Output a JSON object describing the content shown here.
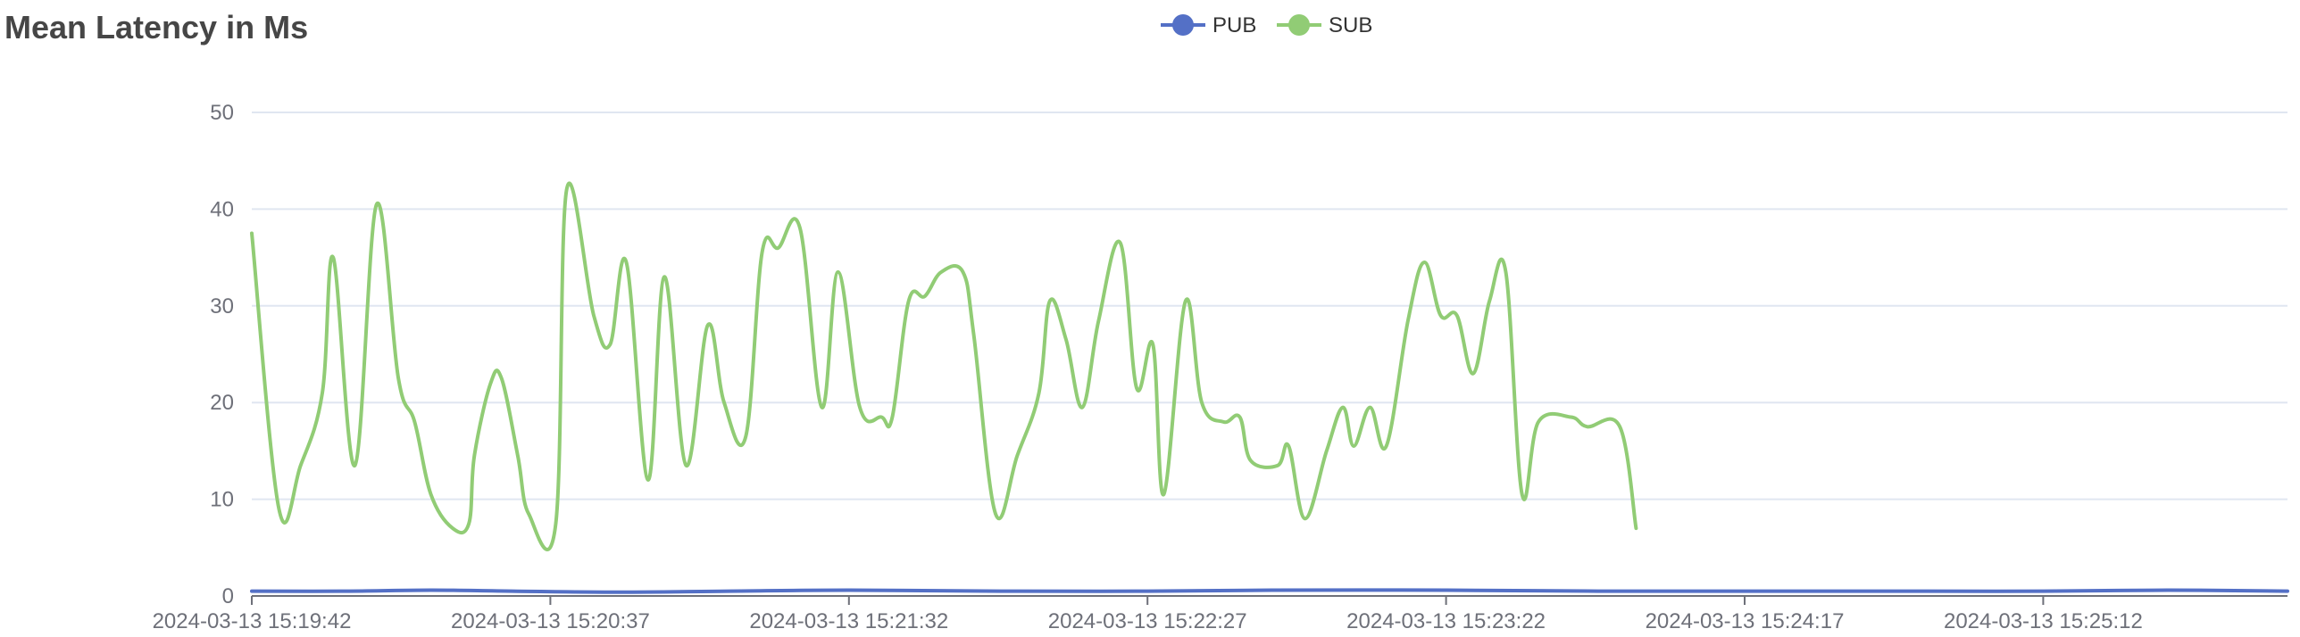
{
  "chart_data": {
    "type": "line",
    "title": "Mean Latency in Ms",
    "xlabel": "",
    "ylabel": "",
    "ylim": [
      0,
      50
    ],
    "yticks": [
      0,
      10,
      20,
      30,
      40,
      50
    ],
    "grid": true,
    "legend_position": "top-center",
    "x_tick_labels": [
      "2024-03-13 15:19:42",
      "2024-03-13 15:20:37",
      "2024-03-13 15:21:32",
      "2024-03-13 15:22:27",
      "2024-03-13 15:23:22",
      "2024-03-13 15:24:17",
      "2024-03-13 15:25:12"
    ],
    "x_tick_step_seconds": 55,
    "x_end": "2024-03-13 15:25:57",
    "series": [
      {
        "name": "PUB",
        "color": "#5470c6",
        "points": [
          [
            "2024-03-13 15:19:42",
            0.5
          ],
          [
            "2024-03-13 15:20:00",
            0.5
          ],
          [
            "2024-03-13 15:20:15",
            0.6
          ],
          [
            "2024-03-13 15:20:30",
            0.5
          ],
          [
            "2024-03-13 15:20:50",
            0.4
          ],
          [
            "2024-03-13 15:21:10",
            0.5
          ],
          [
            "2024-03-13 15:21:32",
            0.6
          ],
          [
            "2024-03-13 15:22:00",
            0.5
          ],
          [
            "2024-03-13 15:22:27",
            0.5
          ],
          [
            "2024-03-13 15:22:50",
            0.6
          ],
          [
            "2024-03-13 15:23:22",
            0.6
          ],
          [
            "2024-03-13 15:23:50",
            0.5
          ],
          [
            "2024-03-13 15:24:17",
            0.5
          ],
          [
            "2024-03-13 15:24:45",
            0.5
          ],
          [
            "2024-03-13 15:25:12",
            0.5
          ],
          [
            "2024-03-13 15:25:35",
            0.6
          ],
          [
            "2024-03-13 15:25:57",
            0.5
          ]
        ]
      },
      {
        "name": "SUB",
        "color": "#91cc75",
        "points": [
          [
            "2024-03-13 15:19:42",
            37.5
          ],
          [
            "2024-03-13 15:19:47",
            9.0
          ],
          [
            "2024-03-13 15:19:51",
            13.5
          ],
          [
            "2024-03-13 15:19:55",
            21.0
          ],
          [
            "2024-03-13 15:19:57",
            35.0
          ],
          [
            "2024-03-13 15:20:01",
            13.5
          ],
          [
            "2024-03-13 15:20:05",
            40.5
          ],
          [
            "2024-03-13 15:20:09",
            22.5
          ],
          [
            "2024-03-13 15:20:12",
            18.0
          ],
          [
            "2024-03-13 15:20:15",
            10.5
          ],
          [
            "2024-03-13 15:20:19",
            7.0
          ],
          [
            "2024-03-13 15:20:22",
            7.5
          ],
          [
            "2024-03-13 15:20:23",
            14.5
          ],
          [
            "2024-03-13 15:20:26",
            22.0
          ],
          [
            "2024-03-13 15:20:28",
            22.5
          ],
          [
            "2024-03-13 15:20:31",
            14.5
          ],
          [
            "2024-03-13 15:20:33",
            8.5
          ],
          [
            "2024-03-13 15:20:38",
            7.5
          ],
          [
            "2024-03-13 15:20:40",
            42.0
          ],
          [
            "2024-03-13 15:20:45",
            29.0
          ],
          [
            "2024-03-13 15:20:48",
            26.0
          ],
          [
            "2024-03-13 15:20:51",
            34.5
          ],
          [
            "2024-03-13 15:20:55",
            12.0
          ],
          [
            "2024-03-13 15:20:58",
            33.0
          ],
          [
            "2024-03-13 15:21:02",
            13.5
          ],
          [
            "2024-03-13 15:21:06",
            28.0
          ],
          [
            "2024-03-13 15:21:09",
            20.0
          ],
          [
            "2024-03-13 15:21:13",
            16.5
          ],
          [
            "2024-03-13 15:21:16",
            35.5
          ],
          [
            "2024-03-13 15:21:19",
            36.0
          ],
          [
            "2024-03-13 15:21:23",
            38.0
          ],
          [
            "2024-03-13 15:21:27",
            19.5
          ],
          [
            "2024-03-13 15:21:30",
            33.5
          ],
          [
            "2024-03-13 15:21:34",
            19.5
          ],
          [
            "2024-03-13 15:21:38",
            18.5
          ],
          [
            "2024-03-13 15:21:40",
            18.5
          ],
          [
            "2024-03-13 15:21:43",
            30.5
          ],
          [
            "2024-03-13 15:21:46",
            31.0
          ],
          [
            "2024-03-13 15:21:49",
            33.5
          ],
          [
            "2024-03-13 15:21:53",
            33.5
          ],
          [
            "2024-03-13 15:21:55",
            27.0
          ],
          [
            "2024-03-13 15:21:59",
            8.5
          ],
          [
            "2024-03-13 15:22:03",
            14.5
          ],
          [
            "2024-03-13 15:22:07",
            21.0
          ],
          [
            "2024-03-13 15:22:09",
            30.5
          ],
          [
            "2024-03-13 15:22:12",
            26.5
          ],
          [
            "2024-03-13 15:22:15",
            19.5
          ],
          [
            "2024-03-13 15:22:18",
            28.5
          ],
          [
            "2024-03-13 15:22:22",
            36.5
          ],
          [
            "2024-03-13 15:22:25",
            21.5
          ],
          [
            "2024-03-13 15:22:28",
            26.0
          ],
          [
            "2024-03-13 15:22:30",
            10.5
          ],
          [
            "2024-03-13 15:22:34",
            30.5
          ],
          [
            "2024-03-13 15:22:37",
            20.0
          ],
          [
            "2024-03-13 15:22:41",
            18.0
          ],
          [
            "2024-03-13 15:22:44",
            18.5
          ],
          [
            "2024-03-13 15:22:46",
            14.0
          ],
          [
            "2024-03-13 15:22:51",
            13.5
          ],
          [
            "2024-03-13 15:22:53",
            15.5
          ],
          [
            "2024-03-13 15:22:56",
            8.0
          ],
          [
            "2024-03-13 15:23:00",
            15.0
          ],
          [
            "2024-03-13 15:23:03",
            19.5
          ],
          [
            "2024-03-13 15:23:05",
            15.5
          ],
          [
            "2024-03-13 15:23:08",
            19.5
          ],
          [
            "2024-03-13 15:23:11",
            15.5
          ],
          [
            "2024-03-13 15:23:15",
            28.5
          ],
          [
            "2024-03-13 15:23:18",
            34.5
          ],
          [
            "2024-03-13 15:23:21",
            29.0
          ],
          [
            "2024-03-13 15:23:24",
            29.0
          ],
          [
            "2024-03-13 15:23:27",
            23.0
          ],
          [
            "2024-03-13 15:23:30",
            30.5
          ],
          [
            "2024-03-13 15:23:33",
            33.5
          ],
          [
            "2024-03-13 15:23:36",
            10.5
          ],
          [
            "2024-03-13 15:23:39",
            18.0
          ],
          [
            "2024-03-13 15:23:45",
            18.5
          ],
          [
            "2024-03-13 15:23:48",
            17.5
          ],
          [
            "2024-03-13 15:23:54",
            17.5
          ],
          [
            "2024-03-13 15:23:57",
            7.0
          ]
        ]
      }
    ]
  }
}
